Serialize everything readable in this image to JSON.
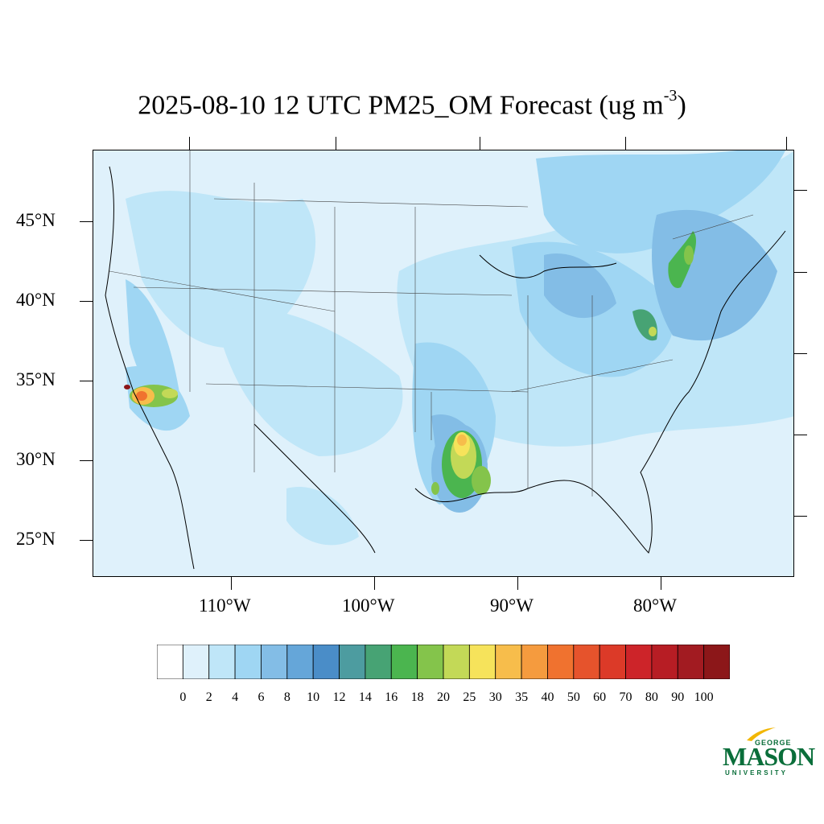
{
  "title": {
    "text": "2025-08-10 12 UTC PM25_OM Forecast (ug m",
    "superscript": "-3",
    "close": ")"
  },
  "map": {
    "lat_labels": [
      "45°N",
      "40°N",
      "35°N",
      "30°N",
      "25°N"
    ],
    "lon_labels": [
      "110°W",
      "100°W",
      "90°W",
      "80°W"
    ],
    "background_color": "#dff1fb",
    "plumes": [
      {
        "name": "southern-california",
        "peak_class": "50"
      },
      {
        "name": "louisiana-east-texas",
        "peak_class": "35"
      },
      {
        "name": "northeast-corridor",
        "peak_class": "20"
      }
    ]
  },
  "colorbar": {
    "labels": [
      "0",
      "2",
      "4",
      "6",
      "8",
      "10",
      "12",
      "14",
      "16",
      "18",
      "20",
      "25",
      "30",
      "35",
      "40",
      "50",
      "60",
      "70",
      "80",
      "90",
      "100"
    ],
    "colors": [
      "#ffffff",
      "#dff1fb",
      "#bfe6f8",
      "#9fd6f3",
      "#83bde6",
      "#65a6d9",
      "#4a8dc8",
      "#4d9ca0",
      "#47a374",
      "#4bb54f",
      "#84c44b",
      "#c3d957",
      "#f6e35b",
      "#f7bd4b",
      "#f59b3e",
      "#f0722f",
      "#e6532c",
      "#dc3a28",
      "#cd2429",
      "#b71d24",
      "#a21b21",
      "#8c1719"
    ]
  },
  "logo": {
    "line1": "GEORGE",
    "line2": "MASON",
    "line3": "UNIVERSITY",
    "color": "#0a6e3a",
    "accent": "#f2b705"
  }
}
